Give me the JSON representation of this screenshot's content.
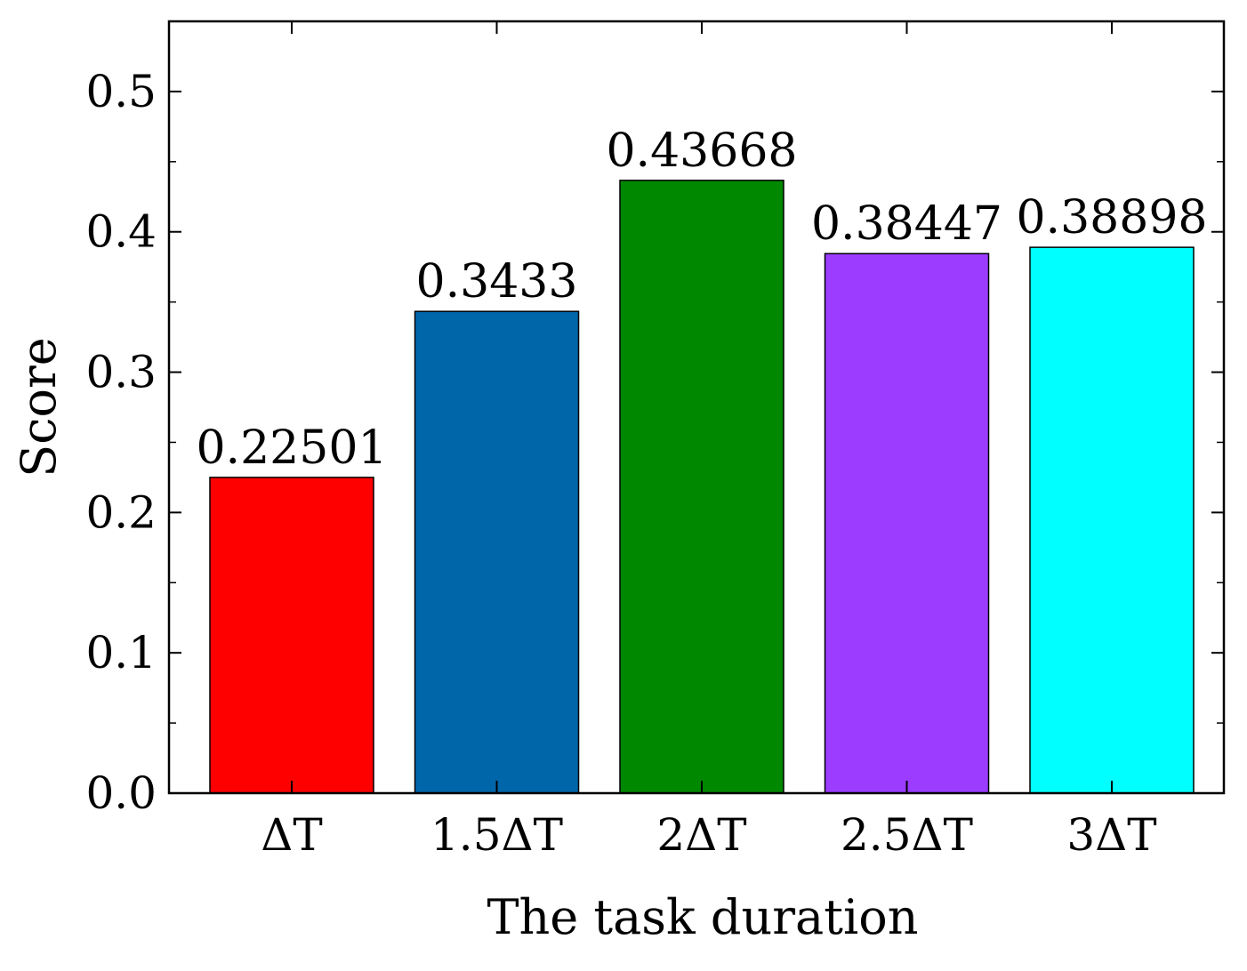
{
  "chart_data": {
    "type": "bar",
    "title": "",
    "xlabel": "The task duration",
    "ylabel": "Score",
    "ylim": [
      0.0,
      0.55
    ],
    "yticks": [
      "0.0",
      "0.1",
      "0.2",
      "0.3",
      "0.4",
      "0.5"
    ],
    "ytick_values": [
      0.0,
      0.1,
      0.2,
      0.3,
      0.4,
      0.5
    ],
    "grid": false,
    "categories": [
      "ΔT",
      "1.5ΔT",
      "2ΔT",
      "2.5ΔT",
      "3ΔT"
    ],
    "values": [
      0.22501,
      0.3433,
      0.43668,
      0.38447,
      0.38898
    ],
    "data_labels": [
      "0.22501",
      "0.3433",
      "0.43668",
      "0.38447",
      "0.38898"
    ],
    "colors": [
      "#ff0000",
      "#0066aa",
      "#008800",
      "#9b3cff",
      "#00ffff"
    ]
  }
}
